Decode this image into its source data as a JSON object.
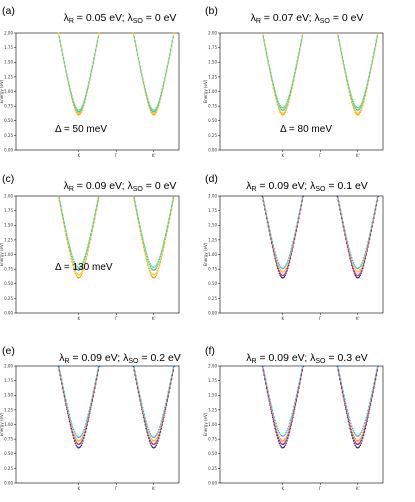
{
  "chart_data": [
    {
      "type": "line",
      "label": "(a)",
      "lambda_R": "0.05",
      "lambda_SO": "0",
      "delta": "Δ = 50 meV",
      "ylabel": "Energy (eV)",
      "ylim": [
        0,
        2.0
      ],
      "yticks": [
        "0.00",
        "0.25",
        "0.50",
        "0.75",
        "1.00",
        "1.25",
        "1.50",
        "1.75",
        "2.00"
      ],
      "xticks": [
        "K",
        "Γ",
        "K'"
      ],
      "series": [
        {
          "color": "#ff9900",
          "min": 0.6
        },
        {
          "color": "#ffd000",
          "min": 0.62
        },
        {
          "color": "#29b6f6",
          "min": 0.65
        },
        {
          "color": "#66dd66",
          "min": 0.68
        }
      ]
    },
    {
      "type": "line",
      "label": "(b)",
      "lambda_R": "0.07",
      "lambda_SO": "0",
      "delta": "Δ = 80 meV",
      "ylabel": "Energy (eV)",
      "ylim": [
        0,
        2.0
      ],
      "yticks": [
        "0.00",
        "0.25",
        "0.50",
        "0.75",
        "1.00",
        "1.25",
        "1.50",
        "1.75",
        "2.00"
      ],
      "xticks": [
        "K",
        "Γ",
        "K'"
      ],
      "series": [
        {
          "color": "#ff9900",
          "min": 0.6
        },
        {
          "color": "#ffd000",
          "min": 0.63
        },
        {
          "color": "#29b6f6",
          "min": 0.68
        },
        {
          "color": "#66dd66",
          "min": 0.72
        }
      ]
    },
    {
      "type": "line",
      "label": "(c)",
      "lambda_R": "0.09",
      "lambda_SO": "0",
      "delta": "Δ = 130 meV",
      "ylabel": "Energy (eV)",
      "ylim": [
        0,
        2.0
      ],
      "yticks": [
        "0.00",
        "0.25",
        "0.50",
        "0.75",
        "1.00",
        "1.25",
        "1.50",
        "1.75",
        "2.00"
      ],
      "xticks": [
        "K",
        "Γ",
        "K'"
      ],
      "series": [
        {
          "color": "#ff9900",
          "min": 0.6
        },
        {
          "color": "#ffd000",
          "min": 0.65
        },
        {
          "color": "#29b6f6",
          "min": 0.73
        },
        {
          "color": "#66dd66",
          "min": 0.78
        }
      ]
    },
    {
      "type": "line",
      "label": "(d)",
      "lambda_R": "0.09",
      "lambda_SO": "0.1",
      "delta": "",
      "ylabel": "Energy (eV)",
      "ylim": [
        0,
        2.0
      ],
      "yticks": [
        "0.00",
        "0.25",
        "0.50",
        "0.75",
        "1.00",
        "1.25",
        "1.50",
        "1.75",
        "2.00"
      ],
      "xticks": [
        "K",
        "Γ",
        "K'"
      ],
      "series": [
        {
          "color": "#1a237e",
          "min": 0.6
        },
        {
          "color": "#d81b60",
          "min": 0.64
        },
        {
          "color": "#ffb300",
          "min": 0.7
        },
        {
          "color": "#29b6f6",
          "min": 0.76
        }
      ]
    },
    {
      "type": "line",
      "label": "(e)",
      "lambda_R": "0.09",
      "lambda_SO": "0.2",
      "delta": "",
      "ylabel": "Energy (eV)",
      "ylim": [
        0,
        2.0
      ],
      "yticks": [
        "0.00",
        "0.25",
        "0.50",
        "0.75",
        "1.00",
        "1.25",
        "1.50",
        "1.75",
        "2.00"
      ],
      "xticks": [
        "K",
        "Γ",
        "K'"
      ],
      "series": [
        {
          "color": "#1a237e",
          "min": 0.6
        },
        {
          "color": "#c2185b",
          "min": 0.66
        },
        {
          "color": "#ffb300",
          "min": 0.72
        },
        {
          "color": "#29b6f6",
          "min": 0.78
        }
      ]
    },
    {
      "type": "line",
      "label": "(f)",
      "lambda_R": "0.09",
      "lambda_SO": "0.3",
      "delta": "",
      "ylabel": "Energy (eV)",
      "ylim": [
        0,
        2.0
      ],
      "yticks": [
        "0.00",
        "0.25",
        "0.50",
        "0.75",
        "1.00",
        "1.25",
        "1.50",
        "1.75",
        "2.00"
      ],
      "xticks": [
        "K",
        "Γ",
        "K'"
      ],
      "series": [
        {
          "color": "#1a237e",
          "min": 0.6
        },
        {
          "color": "#b0006b",
          "min": 0.66
        },
        {
          "color": "#ff9800",
          "min": 0.72
        },
        {
          "color": "#29b6f6",
          "min": 0.8
        }
      ]
    }
  ]
}
